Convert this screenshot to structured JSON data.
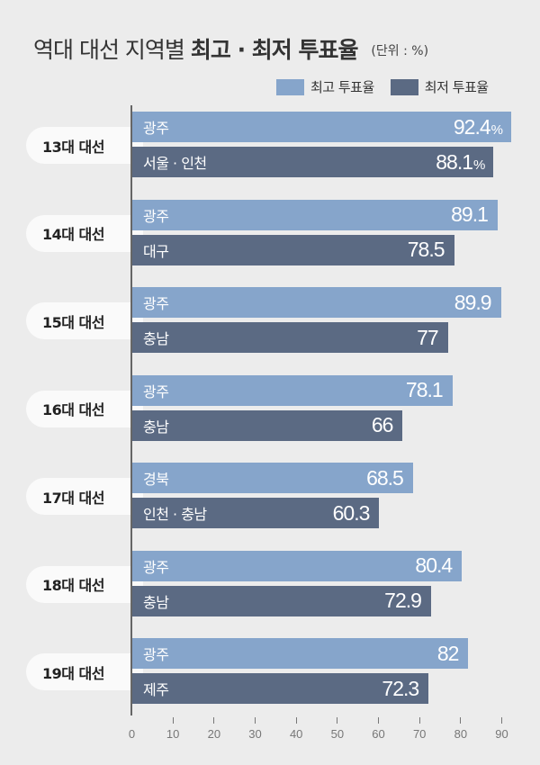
{
  "title": {
    "normal": "역대 대선 지역별",
    "bold": "최고 · 최저 투표율",
    "unit": "(단위 : %)"
  },
  "legend": [
    {
      "label": "최고 투표율",
      "color": "#86a5cb"
    },
    {
      "label": "최저 투표율",
      "color": "#5b6a83"
    }
  ],
  "colors": {
    "high": "#86a5cb",
    "low": "#5b6a83",
    "background": "#ececec"
  },
  "groups": [
    {
      "label": "13대 대선",
      "high": {
        "region": "광주",
        "value": "92.4",
        "suffix": "%"
      },
      "low": {
        "region": "서울 · 인천",
        "value": "88.1",
        "suffix": "%"
      }
    },
    {
      "label": "14대 대선",
      "high": {
        "region": "광주",
        "value": "89.1",
        "suffix": ""
      },
      "low": {
        "region": "대구",
        "value": "78.5",
        "suffix": ""
      }
    },
    {
      "label": "15대 대선",
      "high": {
        "region": "광주",
        "value": "89.9",
        "suffix": ""
      },
      "low": {
        "region": "충남",
        "value": "77",
        "suffix": ""
      }
    },
    {
      "label": "16대 대선",
      "high": {
        "region": "광주",
        "value": "78.1",
        "suffix": ""
      },
      "low": {
        "region": "충남",
        "value": "66",
        "suffix": ""
      }
    },
    {
      "label": "17대 대선",
      "high": {
        "region": "경북",
        "value": "68.5",
        "suffix": ""
      },
      "low": {
        "region": "인천 · 충남",
        "value": "60.3",
        "suffix": ""
      }
    },
    {
      "label": "18대 대선",
      "high": {
        "region": "광주",
        "value": "80.4",
        "suffix": ""
      },
      "low": {
        "region": "충남",
        "value": "72.9",
        "suffix": ""
      }
    },
    {
      "label": "19대 대선",
      "high": {
        "region": "광주",
        "value": "82",
        "suffix": ""
      },
      "low": {
        "region": "제주",
        "value": "72.3",
        "suffix": ""
      }
    }
  ],
  "axis": {
    "ticks": [
      "0",
      "10",
      "20",
      "30",
      "40",
      "50",
      "60",
      "70",
      "80",
      "90"
    ]
  },
  "chart_data": {
    "type": "bar",
    "orientation": "horizontal",
    "title": "역대 대선 지역별 최고 · 최저 투표율",
    "unit": "%",
    "categories": [
      "13대 대선",
      "14대 대선",
      "15대 대선",
      "16대 대선",
      "17대 대선",
      "18대 대선",
      "19대 대선"
    ],
    "series": [
      {
        "name": "최고 투표율",
        "color": "#86a5cb",
        "values": [
          92.4,
          89.1,
          89.9,
          78.1,
          68.5,
          80.4,
          82
        ],
        "regions": [
          "광주",
          "광주",
          "광주",
          "광주",
          "경북",
          "광주",
          "광주"
        ]
      },
      {
        "name": "최저 투표율",
        "color": "#5b6a83",
        "values": [
          88.1,
          78.5,
          77,
          66,
          60.3,
          72.9,
          72.3
        ],
        "regions": [
          "서울 · 인천",
          "대구",
          "충남",
          "충남",
          "인천 · 충남",
          "충남",
          "제주"
        ]
      }
    ],
    "xlabel": "",
    "ylabel": "",
    "xlim": [
      0,
      90
    ],
    "xticks": [
      0,
      10,
      20,
      30,
      40,
      50,
      60,
      70,
      80,
      90
    ],
    "grid": false,
    "legend_position": "top-right"
  }
}
